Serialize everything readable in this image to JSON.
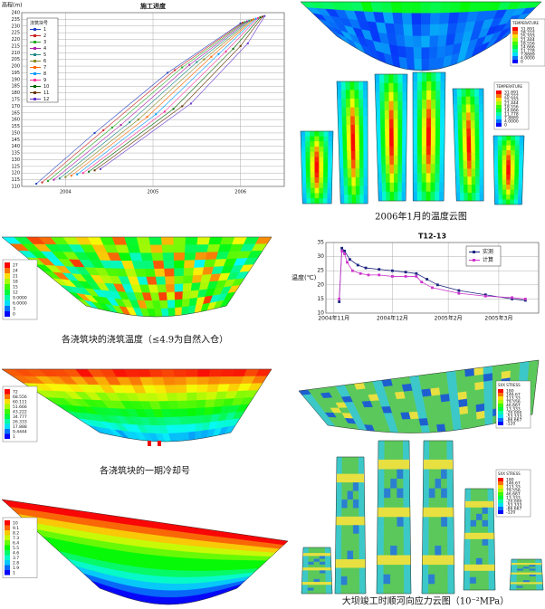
{
  "chart_data": [
    {
      "type": "line",
      "title": "施工进度",
      "ylabel": "高程(m)",
      "legend_title": "浇筑块号",
      "xlim": [
        0,
        36
      ],
      "xticks": [
        {
          "value": 6,
          "label": "2004"
        },
        {
          "value": 18,
          "label": "2005"
        },
        {
          "value": 30,
          "label": "2006"
        }
      ],
      "ylim": [
        110,
        240
      ],
      "yticks": [
        110,
        115,
        120,
        125,
        130,
        135,
        140,
        145,
        150,
        155,
        160,
        165,
        170,
        175,
        180,
        185,
        190,
        195,
        200,
        205,
        210,
        215,
        220,
        225,
        230,
        235,
        240
      ],
      "grid": true,
      "series": [
        {
          "name": "1",
          "color": "#1f3fbf",
          "x": [
            2,
            10,
            20,
            30
          ],
          "values": [
            112,
            150,
            195,
            232
          ]
        },
        {
          "name": "2",
          "color": "#cc2222",
          "x": [
            2.8,
            11.2,
            21,
            30.3
          ],
          "values": [
            113,
            152,
            197,
            232.5
          ]
        },
        {
          "name": "3",
          "color": "#22aa22",
          "x": [
            3.6,
            12.4,
            22,
            30.6
          ],
          "values": [
            114,
            154,
            199,
            233
          ]
        },
        {
          "name": "4",
          "color": "#aa22aa",
          "x": [
            4.4,
            13.6,
            23,
            30.9
          ],
          "values": [
            115,
            156,
            201,
            233.5
          ]
        },
        {
          "name": "5",
          "color": "#228888",
          "x": [
            5.2,
            14.8,
            24,
            31.2
          ],
          "values": [
            116,
            158,
            203,
            234
          ]
        },
        {
          "name": "6",
          "color": "#888822",
          "x": [
            6,
            16,
            25,
            31.5
          ],
          "values": [
            117,
            160,
            205,
            234.5
          ]
        },
        {
          "name": "7",
          "color": "#ff6600",
          "x": [
            6.8,
            17.2,
            26,
            31.8
          ],
          "values": [
            118,
            162,
            207,
            235
          ]
        },
        {
          "name": "8",
          "color": "#0099ff",
          "x": [
            7.6,
            18.4,
            27,
            32.1
          ],
          "values": [
            119,
            164,
            209,
            235.5
          ]
        },
        {
          "name": "9",
          "color": "#ff3399",
          "x": [
            8.4,
            19.6,
            28,
            32.4
          ],
          "values": [
            120,
            166,
            211,
            236
          ]
        },
        {
          "name": "10",
          "color": "#006600",
          "x": [
            9.2,
            20.8,
            29,
            32.7
          ],
          "values": [
            121,
            168,
            213,
            236.5
          ]
        },
        {
          "name": "11",
          "color": "#663300",
          "x": [
            10,
            22,
            30,
            33
          ],
          "values": [
            122,
            170,
            215,
            237
          ]
        },
        {
          "name": "12",
          "color": "#6633cc",
          "x": [
            10.8,
            23.2,
            31,
            33.3
          ],
          "values": [
            123,
            172,
            217,
            237.5
          ]
        }
      ]
    },
    {
      "type": "line",
      "title": "T12-13",
      "ylabel": "温度(℃)",
      "xlim": [
        0,
        8
      ],
      "xticks": [
        {
          "value": 0.3,
          "label": "2004年11月"
        },
        {
          "value": 2.5,
          "label": "2004年12月"
        },
        {
          "value": 4.6,
          "label": "2005年2月"
        },
        {
          "value": 6.5,
          "label": "2005年3月"
        }
      ],
      "ylim": [
        10,
        35
      ],
      "yticks": [
        10,
        15,
        20,
        25,
        30,
        35
      ],
      "grid": true,
      "legend_corner": "top-right",
      "series": [
        {
          "name": "实测",
          "color": "#1a237e",
          "x": [
            0.5,
            0.6,
            0.7,
            0.9,
            1.2,
            1.5,
            2,
            2.5,
            3,
            3.4,
            3.8,
            4.2,
            5,
            6,
            7,
            7.5
          ],
          "values": [
            14,
            33,
            32,
            29,
            27,
            26,
            25.5,
            25,
            24.5,
            24,
            22,
            20,
            18,
            16.5,
            15,
            14.5
          ]
        },
        {
          "name": "计算",
          "color": "#cc33cc",
          "x": [
            0.5,
            0.6,
            0.7,
            0.8,
            1,
            1.3,
            1.6,
            2,
            2.5,
            3,
            3.4,
            3.6,
            4,
            5,
            6,
            7,
            7.5
          ],
          "values": [
            15,
            32,
            31,
            28,
            25,
            24,
            23.5,
            23.5,
            23,
            23,
            23,
            21,
            19,
            17,
            16,
            15.5,
            15
          ]
        }
      ]
    }
  ],
  "figures": {
    "temperature": {
      "caption": "2006年1月的温度云图",
      "legend_title": "TEMPERATURE",
      "legend": [
        "31.891",
        "28.222",
        "25.333",
        "21.444",
        "18.556",
        "14.666",
        "11.778",
        "7.8889",
        "4.0000",
        "0"
      ]
    },
    "pouring": {
      "caption": "各浇筑块的浇筑温度（≤4.9为自然入仓）",
      "legend": [
        "27",
        "24",
        "21",
        "18",
        "15",
        "12",
        "9.0000",
        "6.0000",
        "3",
        "0"
      ]
    },
    "cooling": {
      "caption": "各浇筑块的一期冷却号",
      "legend": [
        "72",
        "68.556",
        "60.111",
        "51.666",
        "43.222",
        "34.777",
        "26.333",
        "17.888",
        "9.4444",
        "1"
      ]
    },
    "zones": {
      "legend": [
        "10",
        "9.1",
        "8.2",
        "7.3",
        "6.4",
        "5.5",
        "4.6",
        "3.7",
        "2.8",
        "1.9",
        "1"
      ]
    },
    "stress": {
      "caption": "大坝竣工时顺河向应力云图（10⁻²MPa）",
      "legend_title": "SXX STRESS",
      "legend": [
        "180",
        "146.67",
        "113.33",
        "79.556",
        "46.667",
        "13.333",
        "-20.000",
        "-53.333",
        "-86.667",
        "-120"
      ]
    }
  }
}
